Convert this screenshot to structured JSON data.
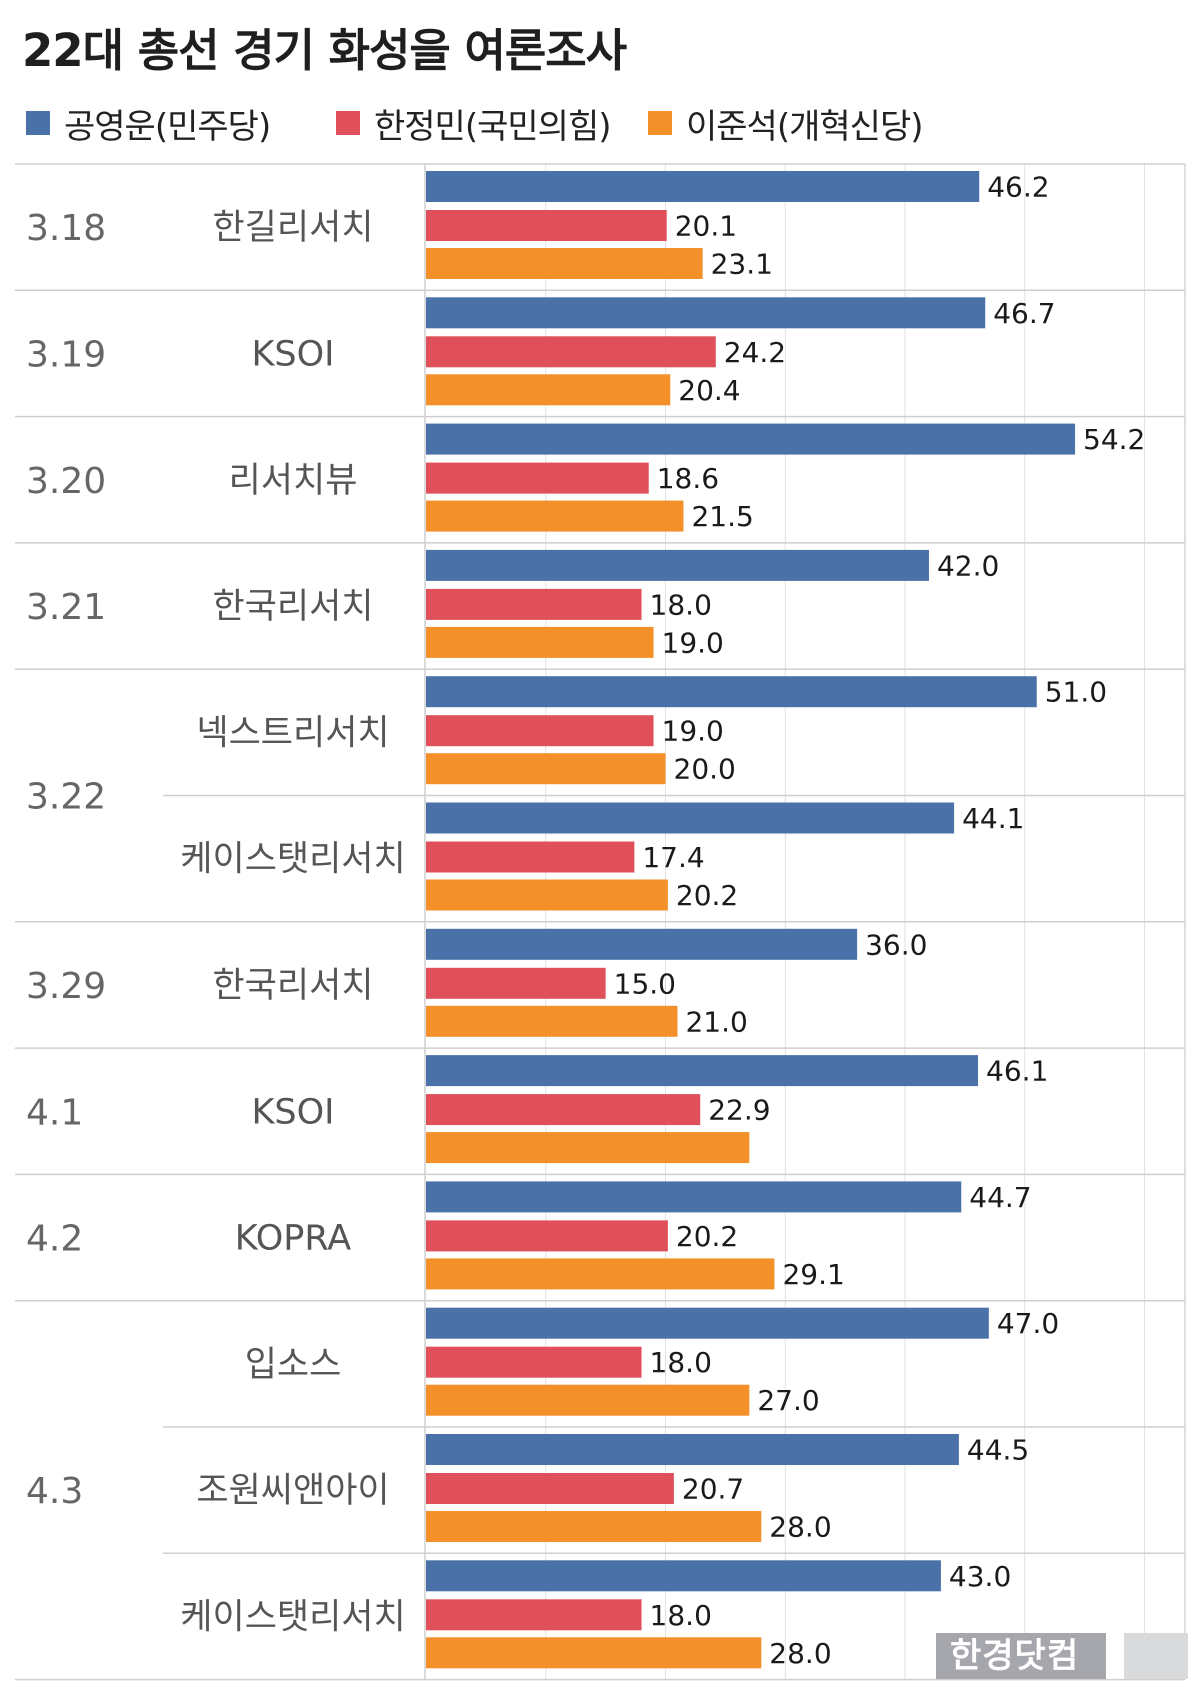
{
  "chart_data": {
    "type": "bar",
    "orientation": "horizontal",
    "title": "22대 총선 경기 화성을 여론조사",
    "series": [
      {
        "name": "공영운(민주당)",
        "color": "#4a72a8",
        "values": [
          46.2,
          46.7,
          54.2,
          42.0,
          51.0,
          44.1,
          36.0,
          46.1,
          44.7,
          47.0,
          44.5,
          43.0
        ]
      },
      {
        "name": "한정민(국민의힘)",
        "color": "#e0505a",
        "values": [
          20.1,
          24.2,
          18.6,
          18.0,
          19.0,
          17.4,
          15.0,
          22.9,
          20.2,
          18.0,
          20.7,
          18.0
        ]
      },
      {
        "name": "이준석(개혁신당)",
        "color": "#f39029",
        "values": [
          23.1,
          20.4,
          21.5,
          19.0,
          20.0,
          20.2,
          21.0,
          27.0,
          29.1,
          27.0,
          28.0,
          28.0
        ]
      }
    ],
    "value_labels_visible": [
      [
        true,
        true,
        true,
        true,
        true,
        true,
        true,
        true,
        true,
        true,
        true,
        true
      ],
      [
        true,
        true,
        true,
        true,
        true,
        true,
        true,
        true,
        true,
        true,
        true,
        true
      ],
      [
        true,
        true,
        true,
        true,
        true,
        true,
        true,
        false,
        true,
        true,
        true,
        true
      ]
    ],
    "date_groups": [
      {
        "date": "3.18",
        "polls": [
          "한길리서치"
        ]
      },
      {
        "date": "3.19",
        "polls": [
          "KSOI"
        ]
      },
      {
        "date": "3.20",
        "polls": [
          "리서치뷰"
        ]
      },
      {
        "date": "3.21",
        "polls": [
          "한국리서치"
        ]
      },
      {
        "date": "3.22",
        "polls": [
          "넥스트리서치",
          "케이스탯리서치"
        ]
      },
      {
        "date": "3.29",
        "polls": [
          "한국리서치"
        ]
      },
      {
        "date": "4.1",
        "polls": [
          "KSOI"
        ]
      },
      {
        "date": "4.2",
        "polls": [
          "KOPRA"
        ]
      },
      {
        "date": "4.3",
        "polls": [
          "입소스",
          "조원씨앤아이",
          "케이스탯리서치"
        ]
      }
    ],
    "xlim": [
      0,
      60
    ],
    "grid": true,
    "legend_position": "top"
  },
  "watermark": "한경닷컴"
}
